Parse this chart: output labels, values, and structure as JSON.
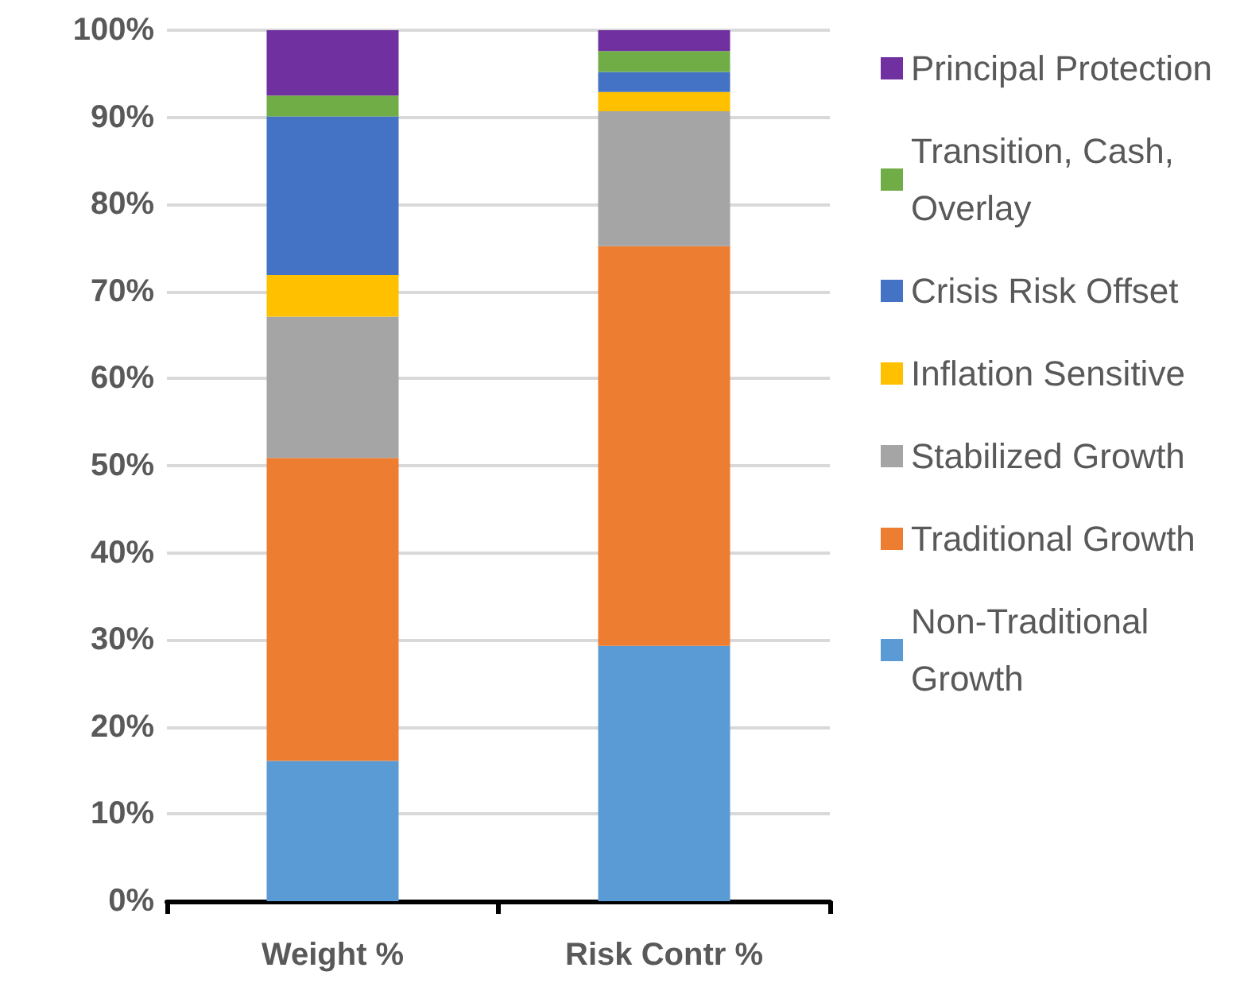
{
  "chart_data": {
    "type": "bar",
    "stacked": true,
    "categories": [
      "Weight %",
      "Risk Contr %"
    ],
    "series": [
      {
        "name": "Non-Traditional Growth",
        "color": "#5b9bd5",
        "values": [
          16.1,
          29.3
        ]
      },
      {
        "name": "Traditional Growth",
        "color": "#ed7d31",
        "values": [
          34.8,
          45.9
        ]
      },
      {
        "name": "Stabilized Growth",
        "color": "#a5a5a5",
        "values": [
          16.2,
          15.5
        ]
      },
      {
        "name": "Inflation Sensitive",
        "color": "#ffc000",
        "values": [
          4.8,
          2.2
        ]
      },
      {
        "name": "Crisis Risk Offset",
        "color": "#4472c4",
        "values": [
          18.2,
          2.3
        ]
      },
      {
        "name": "Transition, Cash, Overlay",
        "color": "#70ad47",
        "values": [
          2.4,
          2.4
        ]
      },
      {
        "name": "Principal Protection",
        "color": "#7030a0",
        "values": [
          7.5,
          2.4
        ]
      }
    ],
    "ylim": [
      0,
      100
    ],
    "yticks": [
      {
        "value": 0,
        "label": "0%"
      },
      {
        "value": 10,
        "label": "10%"
      },
      {
        "value": 20,
        "label": "20%"
      },
      {
        "value": 30,
        "label": "30%"
      },
      {
        "value": 40,
        "label": "40%"
      },
      {
        "value": 50,
        "label": "50%"
      },
      {
        "value": 60,
        "label": "60%"
      },
      {
        "value": 70,
        "label": "70%"
      },
      {
        "value": 80,
        "label": "80%"
      },
      {
        "value": 90,
        "label": "90%"
      },
      {
        "value": 100,
        "label": "100%"
      }
    ],
    "grid": "y",
    "legend": "right"
  }
}
